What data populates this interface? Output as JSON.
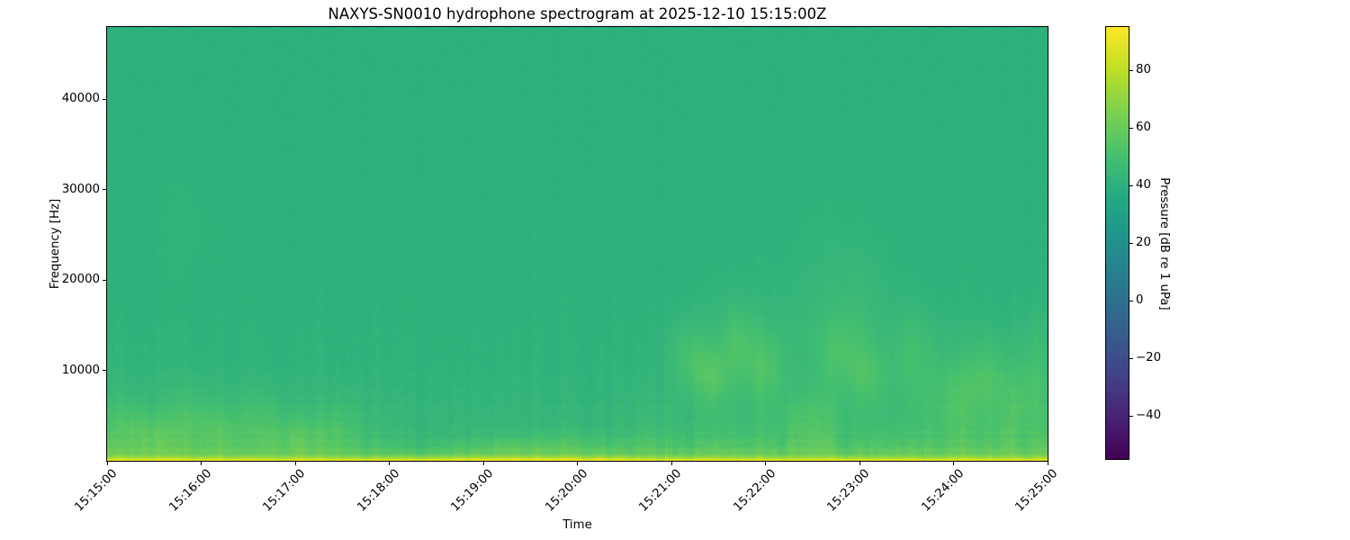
{
  "chart_data": {
    "type": "heatmap",
    "subtype": "spectrogram",
    "title": "NAXYS-SN0010 hydrophone spectrogram at 2025-12-10 15:15:00Z",
    "xlabel": "Time",
    "ylabel": "Frequency [Hz]",
    "grid": false,
    "xlim_seconds": [
      0,
      600
    ],
    "x_tick_seconds": [
      0,
      60,
      120,
      180,
      240,
      300,
      360,
      420,
      480,
      540,
      600
    ],
    "x_tick_labels": [
      "15:15:00",
      "15:16:00",
      "15:17:00",
      "15:18:00",
      "15:19:00",
      "15:20:00",
      "15:21:00",
      "15:22:00",
      "15:23:00",
      "15:24:00",
      "15:25:00"
    ],
    "ylim_hz": [
      0,
      48000
    ],
    "y_ticks": [
      {
        "hz": 10000,
        "label": "10000"
      },
      {
        "hz": 20000,
        "label": "20000"
      },
      {
        "hz": 30000,
        "label": "30000"
      },
      {
        "hz": 40000,
        "label": "40000"
      }
    ],
    "colorbar": {
      "label": "Pressure [dB re 1 uPa]",
      "vmin": -55,
      "vmax": 95,
      "ticks": [
        {
          "v": 80,
          "label": "80"
        },
        {
          "v": 60,
          "label": "60"
        },
        {
          "v": 40,
          "label": "40"
        },
        {
          "v": 20,
          "label": "20"
        },
        {
          "v": 0,
          "label": "0"
        },
        {
          "v": -20,
          "label": "−20"
        },
        {
          "v": -40,
          "label": "−40"
        }
      ],
      "colormap": "viridis",
      "stops": [
        [
          0.0,
          "#440154"
        ],
        [
          0.1,
          "#482475"
        ],
        [
          0.2,
          "#414487"
        ],
        [
          0.3,
          "#355f8d"
        ],
        [
          0.4,
          "#2a788e"
        ],
        [
          0.5,
          "#21918c"
        ],
        [
          0.6,
          "#22a884"
        ],
        [
          0.7,
          "#44bf70"
        ],
        [
          0.8,
          "#7ad151"
        ],
        [
          0.9,
          "#bddf26"
        ],
        [
          1.0,
          "#fde725"
        ]
      ]
    },
    "field": {
      "description": "Mostly uniform teal-green ambient (~40-45 dB) across all frequencies; bright yellow band below ~1 kHz; streaky yellow-green low-frequency activity up to ~6 kHz strongest 15:15-15:18 and after 15:20:30; quieter interval 15:18-15:20; bright mottled patches 8-16 kHz from ~15:21 to 15:25; faint vertical striping throughout and horizontal striations below ~8 kHz.",
      "seed": 20251210,
      "background_db": 40.3,
      "broad_tilt": {
        "amp_db": 2.2,
        "scale_hz": 16000
      },
      "bottom_band": {
        "amp_db": 46,
        "scale_hz": 520
      },
      "low_streaks": {
        "amp_db": 17,
        "scale_hz": 3500,
        "cut_hz": 900
      },
      "activity_envelope": [
        [
          0,
          1.0
        ],
        [
          165,
          1.0
        ],
        [
          195,
          0.45
        ],
        [
          320,
          0.45
        ],
        [
          350,
          1.05
        ],
        [
          600,
          1.05
        ]
      ],
      "bottom_boost_envelope": [
        [
          0,
          0
        ],
        [
          200,
          0
        ],
        [
          230,
          1
        ],
        [
          320,
          1
        ],
        [
          345,
          0
        ],
        [
          600,
          0
        ]
      ],
      "stripe_db": 1.7,
      "ripple_db": 1.3,
      "noise_db": 2.4,
      "events": [
        {
          "t": 10,
          "f": 4000,
          "dt": 12,
          "df": 2200,
          "a": 5
        },
        {
          "t": 30,
          "f": 2800,
          "dt": 14,
          "df": 1800,
          "a": 6
        },
        {
          "t": 52,
          "f": 5200,
          "dt": 10,
          "df": 2600,
          "a": 5
        },
        {
          "t": 50,
          "f": 26000,
          "dt": 12,
          "df": 4000,
          "a": 1.5
        },
        {
          "t": 70,
          "f": 3200,
          "dt": 12,
          "df": 2000,
          "a": 6
        },
        {
          "t": 95,
          "f": 4500,
          "dt": 12,
          "df": 2400,
          "a": 5
        },
        {
          "t": 120,
          "f": 2600,
          "dt": 14,
          "df": 1600,
          "a": 6
        },
        {
          "t": 148,
          "f": 3800,
          "dt": 10,
          "df": 2200,
          "a": 5
        },
        {
          "t": 255,
          "f": 1400,
          "dt": 28,
          "df": 900,
          "a": 6
        },
        {
          "t": 300,
          "f": 1600,
          "dt": 22,
          "df": 1000,
          "a": 5
        },
        {
          "t": 372,
          "f": 11500,
          "dt": 9,
          "df": 2600,
          "a": 8
        },
        {
          "t": 386,
          "f": 9200,
          "dt": 8,
          "df": 2200,
          "a": 9
        },
        {
          "t": 402,
          "f": 13000,
          "dt": 8,
          "df": 3000,
          "a": 8
        },
        {
          "t": 420,
          "f": 10200,
          "dt": 9,
          "df": 2800,
          "a": 8
        },
        {
          "t": 430,
          "f": 12500,
          "dt": 40,
          "df": 4500,
          "a": 3
        },
        {
          "t": 448,
          "f": 4200,
          "dt": 14,
          "df": 2600,
          "a": 6
        },
        {
          "t": 460,
          "f": 20000,
          "dt": 20,
          "df": 6000,
          "a": 2
        },
        {
          "t": 468,
          "f": 11800,
          "dt": 10,
          "df": 3200,
          "a": 7
        },
        {
          "t": 482,
          "f": 16500,
          "dt": 10,
          "df": 5000,
          "a": 3
        },
        {
          "t": 486,
          "f": 9300,
          "dt": 8,
          "df": 2400,
          "a": 7
        },
        {
          "t": 515,
          "f": 12000,
          "dt": 10,
          "df": 3600,
          "a": 6
        },
        {
          "t": 540,
          "f": 6500,
          "dt": 12,
          "df": 3000,
          "a": 6
        },
        {
          "t": 552,
          "f": 9500,
          "dt": 40,
          "df": 4000,
          "a": 3
        },
        {
          "t": 560,
          "f": 9200,
          "dt": 9,
          "df": 2800,
          "a": 6
        },
        {
          "t": 578,
          "f": 5500,
          "dt": 9,
          "df": 3500,
          "a": 6
        },
        {
          "t": 592,
          "f": 9000,
          "dt": 7,
          "df": 4500,
          "a": 6
        }
      ]
    }
  }
}
